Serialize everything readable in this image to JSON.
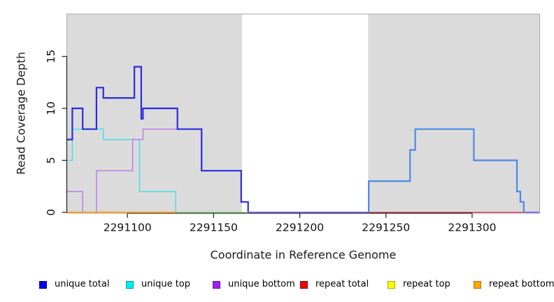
{
  "chart_data": {
    "type": "line",
    "subtype": "step",
    "title": "",
    "xlabel": "Coordinate in Reference Genome",
    "ylabel": "Read Coverage Depth",
    "xlim": [
      2291065,
      2291339
    ],
    "ylim": [
      0,
      19.08
    ],
    "x_ticks": [
      2291100,
      2291150,
      2291200,
      2291250,
      2291300
    ],
    "y_ticks": [
      0,
      5,
      10,
      15
    ],
    "grid": false,
    "legend_position": "bottom",
    "plot_background": "#FFFFFF",
    "box_color": "#A8A8A8",
    "axis_color": "#1A1A1A",
    "shaded_regions": [
      {
        "name": "aligned-region-left",
        "from": 2291065,
        "to": 2291166.5,
        "color": "#DBDBDB"
      },
      {
        "name": "aligned-region-right",
        "from": 2291239.7,
        "to": 2291339,
        "color": "#DBDBDB"
      }
    ],
    "legend": [
      {
        "label": "unique total",
        "color": "#0000EE",
        "border": "#00009A"
      },
      {
        "label": "unique top",
        "color": "#00EEEE",
        "border": "#0099A0"
      },
      {
        "label": "unique bottom",
        "color": "#A020F0",
        "border": "#6A14A0"
      },
      {
        "label": "repeat total",
        "color": "#EE0000",
        "border": "#990000"
      },
      {
        "label": "repeat top",
        "color": "#FFFF00",
        "border": "#A8A800"
      },
      {
        "label": "repeat bottom",
        "color": "#FFA500",
        "border": "#B87400"
      }
    ],
    "series": [
      {
        "name": "unique total",
        "step_changes": [
          [
            2291065,
            7
          ],
          [
            2291068,
            10
          ],
          [
            2291074,
            8
          ],
          [
            2291082,
            12
          ],
          [
            2291086,
            11
          ],
          [
            2291104,
            14
          ],
          [
            2291108,
            9
          ],
          [
            2291109,
            10
          ],
          [
            2291129,
            8
          ],
          [
            2291143,
            4
          ],
          [
            2291166,
            1
          ],
          [
            2291170,
            0
          ],
          [
            2291240,
            3
          ],
          [
            2291264,
            6
          ],
          [
            2291267,
            8
          ],
          [
            2291301,
            5
          ],
          [
            2291326,
            2
          ],
          [
            2291328,
            1
          ],
          [
            2291330,
            0
          ]
        ],
        "end": 2291339
      },
      {
        "name": "unique top",
        "step_changes": [
          [
            2291065,
            5
          ],
          [
            2291068,
            8
          ],
          [
            2291086,
            7
          ],
          [
            2291107,
            2
          ],
          [
            2291128,
            0
          ]
        ],
        "end": 2291339
      },
      {
        "name": "unique bottom",
        "step_changes": [
          [
            2291065,
            2
          ],
          [
            2291074,
            0
          ],
          [
            2291082,
            4
          ],
          [
            2291103,
            7
          ],
          [
            2291109,
            8
          ],
          [
            2291143,
            4
          ],
          [
            2291166,
            1
          ],
          [
            2291170,
            0
          ]
        ],
        "end": 2291339
      },
      {
        "name": "repeat total",
        "step_changes": [
          [
            2291065,
            0
          ]
        ],
        "end": 2291339
      },
      {
        "name": "repeat top",
        "step_changes": [
          [
            2291065,
            0
          ]
        ],
        "end": 2291339
      },
      {
        "name": "repeat bottom",
        "step_changes": [
          [
            2291065,
            0
          ]
        ],
        "end": 2291339
      }
    ],
    "render_paths": [
      {
        "name": "unique-top-left",
        "color": "#3FE0E8",
        "width": 1.4,
        "steps": [
          [
            2291065,
            5
          ],
          [
            2291068,
            8
          ],
          [
            2291086,
            7
          ],
          [
            2291107,
            2
          ],
          [
            2291128,
            0
          ]
        ],
        "end": 2291128
      },
      {
        "name": "unique-bottom-left",
        "color": "#BC77EC",
        "width": 1.4,
        "steps": [
          [
            2291065,
            2
          ],
          [
            2291074,
            0
          ],
          [
            2291082,
            4
          ],
          [
            2291103,
            7
          ],
          [
            2291109,
            8
          ],
          [
            2291143,
            4
          ],
          [
            2291166,
            1
          ],
          [
            2291170,
            0
          ]
        ],
        "end": 2291170
      },
      {
        "name": "unique-total-left",
        "color": "#2B2BE0",
        "width": 2.2,
        "steps": [
          [
            2291065,
            7
          ],
          [
            2291068,
            10
          ],
          [
            2291074,
            8
          ],
          [
            2291082,
            12
          ],
          [
            2291086,
            11
          ],
          [
            2291104,
            14
          ],
          [
            2291108,
            9
          ],
          [
            2291109,
            10
          ],
          [
            2291129,
            8
          ],
          [
            2291143,
            4
          ],
          [
            2291166,
            1
          ],
          [
            2291170,
            0
          ]
        ],
        "end": 2291170
      },
      {
        "name": "baseline-repeat-left",
        "color": "#FF9D1E",
        "width": 2.0,
        "steps": [
          [
            2291065,
            0
          ]
        ],
        "end": 2291128
      },
      {
        "name": "baseline-blend-mid",
        "color": "#8FDC8F",
        "width": 1.6,
        "steps": [
          [
            2291128,
            0
          ]
        ],
        "end": 2291170
      },
      {
        "name": "baseline-unique-gap",
        "color": "#7B68EE",
        "width": 1.8,
        "steps": [
          [
            2291170,
            0
          ]
        ],
        "end": 2291240
      },
      {
        "name": "baseline-repeat-right",
        "color": "#E23B55",
        "width": 1.4,
        "steps": [
          [
            2291240,
            0
          ]
        ],
        "end": 2291330
      },
      {
        "name": "unique-total-right",
        "color": "#4E88E8",
        "width": 2.2,
        "steps": [
          [
            2291240,
            0
          ],
          [
            2291240,
            3
          ],
          [
            2291264,
            6
          ],
          [
            2291267,
            8
          ],
          [
            2291301,
            5
          ],
          [
            2291326,
            2
          ],
          [
            2291328,
            1
          ],
          [
            2291330,
            0
          ]
        ],
        "end": 2291330
      },
      {
        "name": "baseline-unique-right-end",
        "color": "#7B68EE",
        "width": 1.8,
        "steps": [
          [
            2291330,
            0
          ]
        ],
        "end": 2291339
      }
    ]
  }
}
